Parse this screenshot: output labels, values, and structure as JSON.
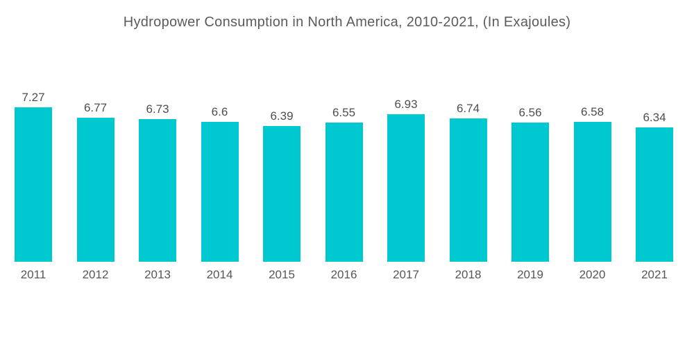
{
  "title": "Hydropower Consumption in North America, 2010-2021, (In Exajoules)",
  "chart_data": {
    "type": "bar",
    "title": "Hydropower Consumption in North America, 2010-2021, (In Exajoules)",
    "categories": [
      "2011",
      "2012",
      "2013",
      "2014",
      "2015",
      "2016",
      "2017",
      "2018",
      "2019",
      "2020",
      "2021"
    ],
    "values": [
      7.27,
      6.77,
      6.73,
      6.6,
      6.39,
      6.55,
      6.93,
      6.74,
      6.56,
      6.58,
      6.34
    ],
    "xlabel": "",
    "ylabel": "",
    "ylim": [
      0,
      7.27
    ],
    "value_labels_shown": true,
    "gridlines": false,
    "axes_shown": false,
    "legend": "none"
  },
  "colors": {
    "bar": "#00c8d1",
    "title_text": "#5a5b5e",
    "value_text": "#4d4e52",
    "year_text": "#55565a",
    "background": "#ffffff"
  }
}
